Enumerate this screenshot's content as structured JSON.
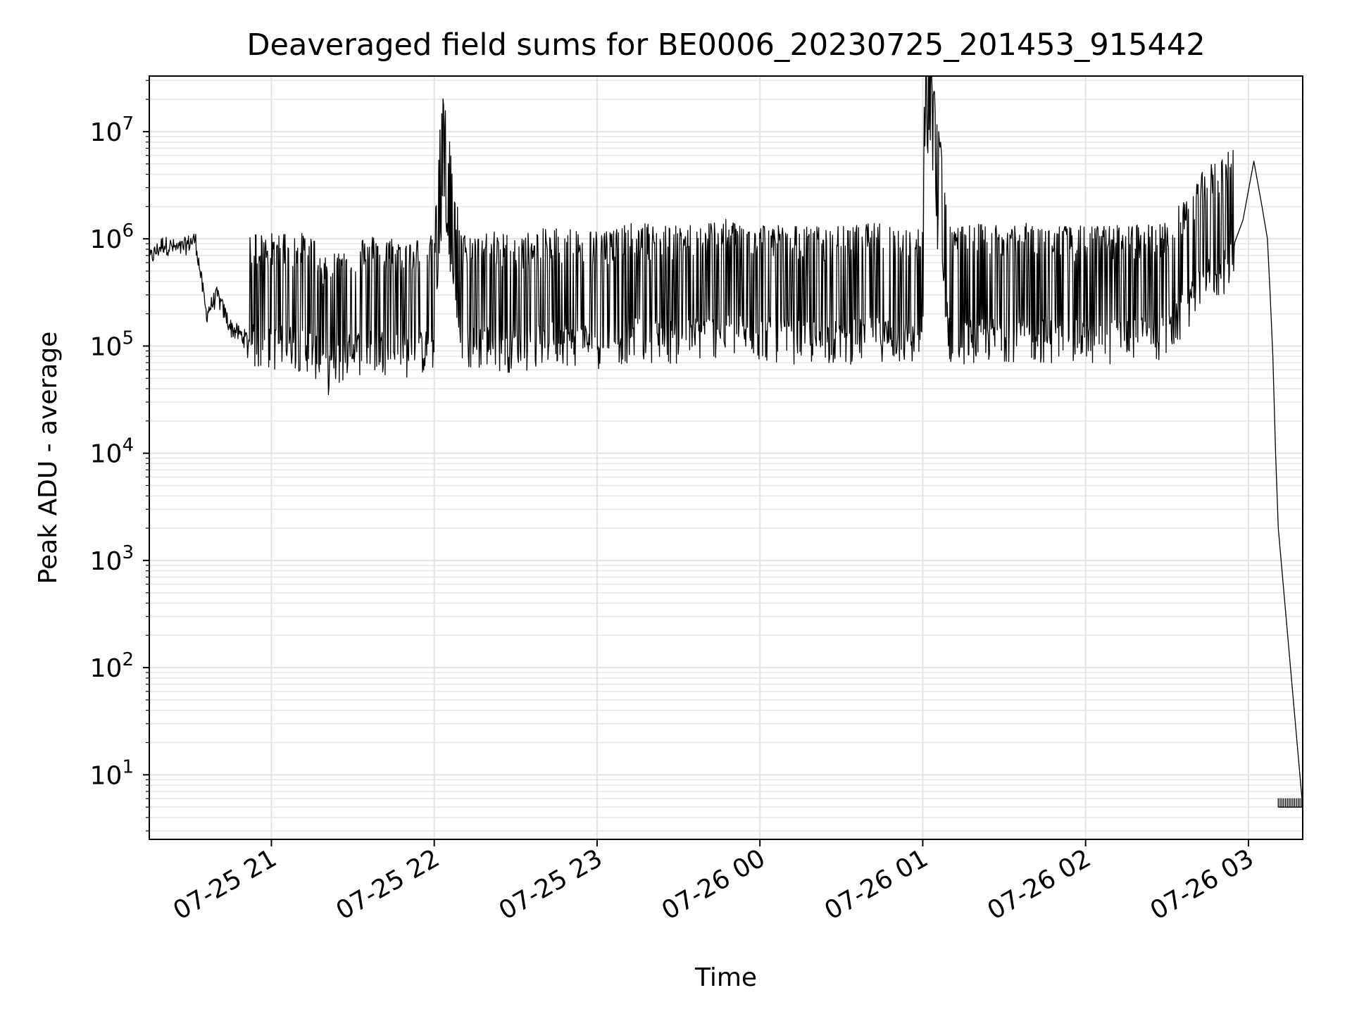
{
  "chart_data": {
    "type": "line",
    "title": "Deaveraged field sums for BE0006_20230725_201453_915442",
    "xlabel": "Time",
    "ylabel": "Peak ADU - average",
    "yscale": "log",
    "xlim": [
      "2023-07-25 20:15",
      "2023-07-26 03:20"
    ],
    "ylim": [
      2.5,
      33000000
    ],
    "x_ticks": [
      "07-25 21",
      "07-25 22",
      "07-25 23",
      "07-26 00",
      "07-26 01",
      "07-26 02",
      "07-26 03"
    ],
    "y_ticks": [
      10,
      100,
      1000,
      10000,
      100000,
      1000000,
      10000000
    ],
    "grid": true,
    "line_color": "#000000",
    "series": [
      {
        "x": [
          "2023-07-25 20:15",
          "2023-07-25 20:20",
          "2023-07-25 20:26",
          "2023-07-25 20:32",
          "2023-07-25 20:36",
          "2023-07-25 20:40",
          "2023-07-25 20:45",
          "2023-07-25 20:50",
          "2023-07-25 20:57",
          "2023-07-25 21:05",
          "2023-07-25 21:15",
          "2023-07-25 21:20",
          "2023-07-25 21:30",
          "2023-07-25 21:40",
          "2023-07-25 21:50",
          "2023-07-25 22:00",
          "2023-07-25 22:03",
          "2023-07-25 22:10",
          "2023-07-25 22:20",
          "2023-07-25 22:30",
          "2023-07-25 22:45",
          "2023-07-25 23:00",
          "2023-07-25 23:15",
          "2023-07-25 23:30",
          "2023-07-25 23:45",
          "2023-07-26 00:00",
          "2023-07-26 00:15",
          "2023-07-26 00:30",
          "2023-07-26 00:45",
          "2023-07-26 01:00",
          "2023-07-26 01:01",
          "2023-07-26 01:10",
          "2023-07-26 01:30",
          "2023-07-26 02:00",
          "2023-07-26 02:30",
          "2023-07-26 02:45",
          "2023-07-26 02:52",
          "2023-07-26 02:58",
          "2023-07-26 03:02",
          "2023-07-26 03:05",
          "2023-07-26 03:07",
          "2023-07-26 03:08",
          "2023-07-26 03:09",
          "2023-07-26 03:10",
          "2023-07-26 03:11",
          "2023-07-26 03:20"
        ],
        "y": [
          650000,
          900000,
          800000,
          1000000,
          200000,
          300000,
          150000,
          120000,
          100000,
          110000,
          100000,
          60000,
          95000,
          100000,
          90000,
          100000,
          2600000,
          100000,
          110000,
          100000,
          120000,
          110000,
          130000,
          120000,
          140000,
          130000,
          120000,
          120000,
          130000,
          110000,
          16000000,
          120000,
          130000,
          120000,
          130000,
          450000,
          550000,
          1500000,
          5300000,
          2000000,
          1000000,
          300000,
          80000,
          10000,
          2000,
          5
        ]
      }
    ]
  }
}
